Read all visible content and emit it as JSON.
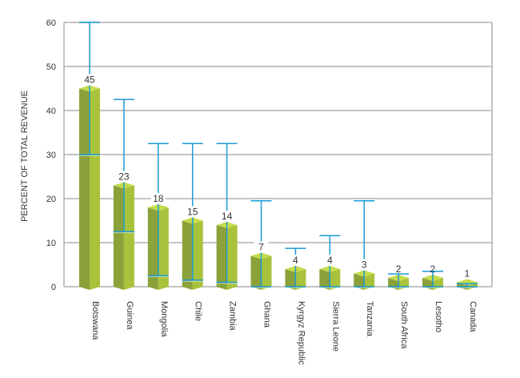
{
  "chart_data": {
    "type": "bar",
    "ylabel": "PERCENT OF TOTAL REVENUE",
    "xlabel": "",
    "ylim": [
      0,
      60
    ],
    "yticks": [
      0,
      10,
      20,
      30,
      40,
      50,
      60
    ],
    "grid": true,
    "categories": [
      "Botswana",
      "Guinea",
      "Mongolia",
      "Chile",
      "Zambia",
      "Ghana",
      "Kyrgyz Republic",
      "Sierra Leone",
      "Tanzania",
      "South Africa",
      "Lesotho",
      "Canada"
    ],
    "values": [
      45,
      23,
      18,
      15,
      14,
      7,
      4,
      4,
      3,
      2,
      2,
      1
    ],
    "range_low": [
      30,
      12.5,
      2.5,
      1.5,
      1,
      0,
      0,
      0,
      0,
      0,
      0,
      0
    ],
    "range_high": [
      60,
      42.5,
      32.5,
      32.5,
      32.5,
      19.5,
      8.7,
      11.6,
      19.5,
      2.9,
      3.5,
      0.7
    ],
    "colors": {
      "bar_dark": "#8ba23a",
      "bar_light": "#a9c23b",
      "bar_top": "#c6dc4a",
      "range": "#1a9ad6",
      "grid": "#b0b0b0"
    }
  }
}
